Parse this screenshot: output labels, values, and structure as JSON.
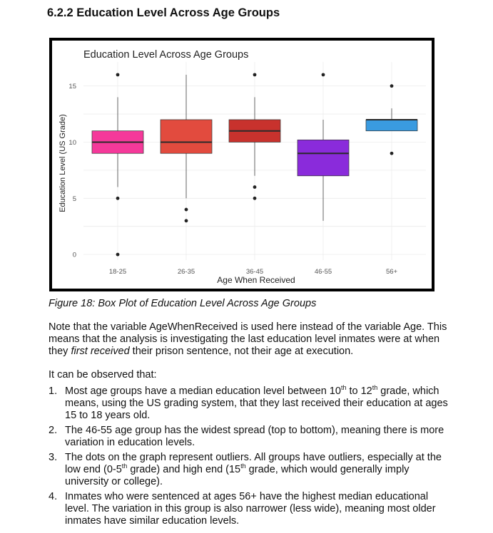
{
  "heading": "6.2.2 Education Level Across Age Groups",
  "chart_data": {
    "type": "box",
    "title": "Education Level Across Age Groups",
    "xlabel": "Age When Received",
    "ylabel": "Education Level (US Grade)",
    "ylim": [
      -0.5,
      16.5
    ],
    "yticks": [
      0,
      5,
      10,
      15
    ],
    "grid": true,
    "legend": "none",
    "categories": [
      "18-25",
      "26-35",
      "36-45",
      "46-55",
      "56+"
    ],
    "boxes": [
      {
        "category": "18-25",
        "q1": 9,
        "median": 10,
        "q3": 11,
        "whisker_low": 6,
        "whisker_high": 14,
        "outliers": [
          16,
          5,
          0
        ],
        "color": "#f5399a"
      },
      {
        "category": "26-35",
        "q1": 9,
        "median": 10,
        "q3": 12,
        "whisker_low": 5,
        "whisker_high": 16,
        "outliers": [
          4,
          3
        ],
        "color": "#e24b3e"
      },
      {
        "category": "36-45",
        "q1": 10,
        "median": 11,
        "q3": 12,
        "whisker_low": 7,
        "whisker_high": 14,
        "outliers": [
          16,
          6,
          5
        ],
        "color": "#c8322d"
      },
      {
        "category": "46-55",
        "q1": 7,
        "median": 9,
        "q3": 10.2,
        "whisker_low": 3,
        "whisker_high": 12,
        "outliers": [
          16
        ],
        "color": "#8a2bdb"
      },
      {
        "category": "56+",
        "q1": 11,
        "median": 12,
        "q3": 12,
        "whisker_low": 11,
        "whisker_high": 13,
        "outliers": [
          15,
          9
        ],
        "color": "#3a9be0"
      }
    ]
  },
  "caption": "Figure 18: Box Plot of Education Level Across Age Groups",
  "note": {
    "part1": "Note that the variable AgeWhenReceived is used here instead of the variable Age. This means that the analysis is investigating the last education level inmates were at when they ",
    "emph": "first received",
    "part2": " their prison sentence, not their age at execution."
  },
  "observed_intro": "It can be observed that:",
  "list": [
    {
      "num": "1.",
      "a": "Most age groups have a median education level between 10",
      "sup1": "th",
      "b": " to 12",
      "sup2": "th",
      "c": " grade, which means, using the US grading system, that they last received their education at ages 15 to 18 years old."
    },
    {
      "num": "2.",
      "text": "The 46-55 age group has the widest spread (top to bottom), meaning there is more variation in education levels."
    },
    {
      "num": "3.",
      "a": "The dots on the graph represent outliers. All groups have outliers, especially at the low end (0-5",
      "sup1": "th",
      "b": " grade) and high end (15",
      "sup2": "th",
      "c": " grade, which would generally imply university or college)."
    },
    {
      "num": "4.",
      "text": "Inmates who were sentenced at ages 56+ have the highest median educational level. The variation in this group is also narrower (less wide), meaning most older inmates have similar education levels."
    }
  ]
}
